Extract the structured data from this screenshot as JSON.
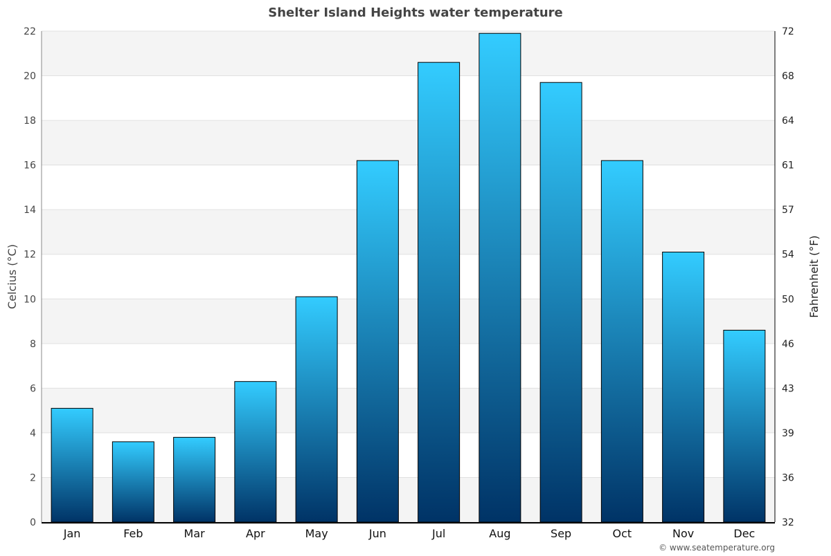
{
  "chart_data": {
    "type": "bar",
    "title": "Shelter Island Heights water temperature",
    "ylabel": "Celcius (°C)",
    "ylabel_right": "Fahrenheit (°F)",
    "categories": [
      "Jan",
      "Feb",
      "Mar",
      "Apr",
      "May",
      "Jun",
      "Jul",
      "Aug",
      "Sep",
      "Oct",
      "Nov",
      "Dec"
    ],
    "values": [
      5.1,
      3.6,
      3.8,
      6.3,
      10.1,
      16.2,
      20.6,
      21.9,
      19.7,
      16.2,
      12.1,
      8.6
    ],
    "ylim": [
      0,
      22
    ],
    "yticks": [
      0,
      2,
      4,
      6,
      8,
      10,
      12,
      14,
      16,
      18,
      20,
      22
    ],
    "yticks_right": [
      32,
      36,
      39,
      43,
      46,
      50,
      54,
      57,
      61,
      64,
      68,
      72
    ],
    "grid": true,
    "legend": "none",
    "colors": {
      "bar_top": "#33ccff",
      "bar_bottom": "#003366",
      "band": "#f4f4f4",
      "grid": "#e0e0e0"
    }
  },
  "footer": {
    "credit": "© www.seatemperature.org"
  }
}
